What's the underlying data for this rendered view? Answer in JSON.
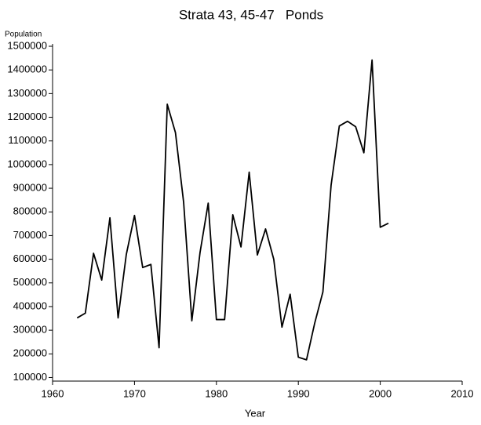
{
  "chart_data": {
    "type": "line",
    "title": "Strata 43, 45-47   Ponds",
    "x_label": "Year",
    "y_label": "Population",
    "x": [
      1963,
      1964,
      1965,
      1966,
      1967,
      1968,
      1969,
      1970,
      1971,
      1972,
      1973,
      1974,
      1975,
      1976,
      1977,
      1978,
      1979,
      1980,
      1981,
      1982,
      1983,
      1984,
      1985,
      1986,
      1987,
      1988,
      1989,
      1990,
      1991,
      1992,
      1993,
      1994,
      1995,
      1996,
      1997,
      1998,
      1999,
      2000,
      2001
    ],
    "series": [
      {
        "name": "Ponds",
        "color": "#000000",
        "values": [
          352000,
          372000,
          625000,
          512000,
          775000,
          352000,
          620000,
          785000,
          565000,
          578000,
          226000,
          1255000,
          1135000,
          840000,
          340000,
          628000,
          837000,
          345000,
          345000,
          788000,
          652000,
          968000,
          618000,
          728000,
          600000,
          313000,
          452000,
          186000,
          175000,
          330000,
          462000,
          913000,
          1163000,
          1183000,
          1160000,
          1050000,
          1442000,
          735000,
          752000
        ]
      }
    ],
    "xlim": [
      1960,
      2010
    ],
    "xticks": [
      1960,
      1970,
      1980,
      1990,
      2000,
      2010
    ],
    "ylim": [
      85000,
      1510000
    ],
    "yticks": [
      100000,
      200000,
      300000,
      400000,
      500000,
      600000,
      700000,
      800000,
      900000,
      1000000,
      1100000,
      1200000,
      1300000,
      1400000,
      1500000
    ],
    "grid": false
  }
}
